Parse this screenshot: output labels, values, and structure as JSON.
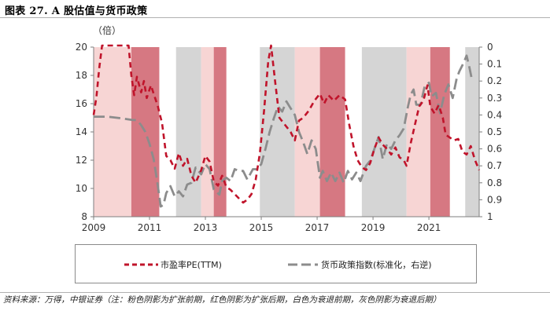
{
  "figure_title": "图表 27. A 股估值与货币政策",
  "source_note": "资料来源：万得，中银证券（注：粉色阴影为扩张前期，红色阴影为扩张后期，白色为衰退前期，灰色阴影为衰退后期）",
  "colors": {
    "pink_shade": "#f7d5d4",
    "red_shade": "#d67882",
    "gray_shade": "#d5d5d5",
    "pe_line": "#c0142b",
    "policy_line": "#8c8c8c",
    "axis": "#7f7f7f"
  },
  "chart_data": {
    "type": "line",
    "title": "",
    "left_axis": {
      "unit_label": "（倍）",
      "range": [
        8,
        20
      ],
      "ticks": [
        8,
        10,
        12,
        14,
        16,
        18,
        20
      ]
    },
    "right_axis": {
      "range": [
        0,
        1
      ],
      "inverted": true,
      "ticks": [
        "0",
        "0.1",
        "0.2",
        "0.3",
        "0.4",
        "0.5",
        "0.6",
        "0.7",
        "0.8",
        "0.9",
        "1"
      ]
    },
    "x_axis": {
      "range": [
        2009.0,
        2022.8
      ],
      "ticks": [
        "2009",
        "2011",
        "2013",
        "2015",
        "2017",
        "2019",
        "2021"
      ]
    },
    "legend": {
      "position": "bottom"
    },
    "shaded_periods": [
      {
        "phase": "扩张前期",
        "color": "pink",
        "start": 2009.0,
        "end": 2010.35
      },
      {
        "phase": "扩张后期",
        "color": "red",
        "start": 2010.35,
        "end": 2011.35
      },
      {
        "phase": "衰退后期",
        "color": "gray",
        "start": 2011.95,
        "end": 2012.85
      },
      {
        "phase": "扩张前期",
        "color": "pink",
        "start": 2012.85,
        "end": 2013.3
      },
      {
        "phase": "扩张后期",
        "color": "red",
        "start": 2013.3,
        "end": 2013.75
      },
      {
        "phase": "衰退后期",
        "color": "gray",
        "start": 2014.95,
        "end": 2016.2
      },
      {
        "phase": "扩张前期",
        "color": "pink",
        "start": 2016.2,
        "end": 2017.1
      },
      {
        "phase": "扩张后期",
        "color": "red",
        "start": 2017.1,
        "end": 2018.0
      },
      {
        "phase": "衰退后期",
        "color": "gray",
        "start": 2018.6,
        "end": 2020.2
      },
      {
        "phase": "扩张前期",
        "color": "pink",
        "start": 2020.2,
        "end": 2021.05
      },
      {
        "phase": "扩张后期",
        "color": "red",
        "start": 2021.05,
        "end": 2021.75
      },
      {
        "phase": "衰退后期",
        "color": "gray",
        "start": 2022.3,
        "end": 2022.8
      }
    ],
    "series": [
      {
        "name": "市盈率PE(TTM)",
        "axis": "left",
        "style": "dashed",
        "points": [
          [
            2009.0,
            15.2
          ],
          [
            2009.1,
            16.5
          ],
          [
            2009.2,
            18.5
          ],
          [
            2009.3,
            20.3
          ],
          [
            2009.4,
            20.5
          ],
          [
            2009.6,
            20.5
          ],
          [
            2009.8,
            20.5
          ],
          [
            2010.0,
            20.5
          ],
          [
            2010.25,
            20.4
          ],
          [
            2010.35,
            18.0
          ],
          [
            2010.45,
            16.6
          ],
          [
            2010.55,
            17.9
          ],
          [
            2010.7,
            16.8
          ],
          [
            2010.8,
            17.6
          ],
          [
            2010.9,
            16.4
          ],
          [
            2011.05,
            17.3
          ],
          [
            2011.15,
            16.7
          ],
          [
            2011.3,
            15.8
          ],
          [
            2011.45,
            14.6
          ],
          [
            2011.6,
            12.3
          ],
          [
            2011.75,
            12.0
          ],
          [
            2011.9,
            11.4
          ],
          [
            2012.05,
            12.5
          ],
          [
            2012.2,
            11.6
          ],
          [
            2012.35,
            12.1
          ],
          [
            2012.5,
            10.9
          ],
          [
            2012.65,
            10.4
          ],
          [
            2012.85,
            11.3
          ],
          [
            2013.0,
            12.3
          ],
          [
            2013.15,
            11.9
          ],
          [
            2013.3,
            10.5
          ],
          [
            2013.45,
            10.2
          ],
          [
            2013.6,
            10.9
          ],
          [
            2013.75,
            10.1
          ],
          [
            2013.9,
            9.9
          ],
          [
            2014.05,
            9.6
          ],
          [
            2014.2,
            9.3
          ],
          [
            2014.35,
            9.0
          ],
          [
            2014.5,
            9.2
          ],
          [
            2014.65,
            9.6
          ],
          [
            2014.8,
            10.6
          ],
          [
            2014.95,
            12.5
          ],
          [
            2015.1,
            15.5
          ],
          [
            2015.25,
            19.0
          ],
          [
            2015.35,
            20.5
          ],
          [
            2015.5,
            17.5
          ],
          [
            2015.65,
            15.0
          ],
          [
            2015.85,
            14.5
          ],
          [
            2016.05,
            14.0
          ],
          [
            2016.2,
            13.4
          ],
          [
            2016.35,
            14.8
          ],
          [
            2016.5,
            15.0
          ],
          [
            2016.7,
            15.5
          ],
          [
            2016.9,
            16.2
          ],
          [
            2017.1,
            16.7
          ],
          [
            2017.25,
            16.0
          ],
          [
            2017.4,
            16.6
          ],
          [
            2017.6,
            16.2
          ],
          [
            2017.8,
            16.6
          ],
          [
            2018.0,
            16.3
          ],
          [
            2018.15,
            14.5
          ],
          [
            2018.3,
            13.0
          ],
          [
            2018.45,
            12.0
          ],
          [
            2018.6,
            11.5
          ],
          [
            2018.75,
            11.3
          ],
          [
            2018.9,
            11.8
          ],
          [
            2019.05,
            12.8
          ],
          [
            2019.2,
            13.6
          ],
          [
            2019.35,
            13.1
          ],
          [
            2019.5,
            12.8
          ],
          [
            2019.65,
            12.4
          ],
          [
            2019.8,
            12.9
          ],
          [
            2019.95,
            12.2
          ],
          [
            2020.1,
            12.0
          ],
          [
            2020.2,
            11.6
          ],
          [
            2020.35,
            13.2
          ],
          [
            2020.5,
            14.5
          ],
          [
            2020.65,
            15.8
          ],
          [
            2020.8,
            16.2
          ],
          [
            2020.95,
            17.3
          ],
          [
            2021.05,
            15.8
          ],
          [
            2021.2,
            15.3
          ],
          [
            2021.35,
            15.9
          ],
          [
            2021.5,
            15.0
          ],
          [
            2021.6,
            13.8
          ],
          [
            2021.75,
            13.6
          ],
          [
            2021.9,
            13.4
          ],
          [
            2022.05,
            13.5
          ],
          [
            2022.2,
            12.6
          ],
          [
            2022.35,
            12.4
          ],
          [
            2022.5,
            13.0
          ],
          [
            2022.65,
            12.0
          ],
          [
            2022.8,
            11.3
          ]
        ]
      },
      {
        "name": "货币政策指数(标准化，右逆)",
        "axis": "right",
        "style": "dashed",
        "points": [
          [
            2009.0,
            0.41
          ],
          [
            2009.5,
            0.41
          ],
          [
            2010.0,
            0.42
          ],
          [
            2010.4,
            0.43
          ],
          [
            2010.55,
            0.43
          ],
          [
            2010.7,
            0.46
          ],
          [
            2010.85,
            0.5
          ],
          [
            2011.0,
            0.57
          ],
          [
            2011.15,
            0.66
          ],
          [
            2011.3,
            0.82
          ],
          [
            2011.4,
            0.94
          ],
          [
            2011.5,
            0.93
          ],
          [
            2011.6,
            0.86
          ],
          [
            2011.75,
            0.82
          ],
          [
            2011.9,
            0.88
          ],
          [
            2012.05,
            0.85
          ],
          [
            2012.2,
            0.88
          ],
          [
            2012.35,
            0.81
          ],
          [
            2012.5,
            0.8
          ],
          [
            2012.65,
            0.71
          ],
          [
            2012.85,
            0.75
          ],
          [
            2013.0,
            0.69
          ],
          [
            2013.15,
            0.72
          ],
          [
            2013.3,
            0.84
          ],
          [
            2013.5,
            0.87
          ],
          [
            2013.6,
            0.79
          ],
          [
            2013.75,
            0.77
          ],
          [
            2013.9,
            0.79
          ],
          [
            2014.05,
            0.72
          ],
          [
            2014.2,
            0.73
          ],
          [
            2014.35,
            0.73
          ],
          [
            2014.5,
            0.78
          ],
          [
            2014.7,
            0.72
          ],
          [
            2014.85,
            0.72
          ],
          [
            2015.0,
            0.69
          ],
          [
            2015.15,
            0.6
          ],
          [
            2015.3,
            0.5
          ],
          [
            2015.45,
            0.42
          ],
          [
            2015.6,
            0.35
          ],
          [
            2015.75,
            0.38
          ],
          [
            2015.9,
            0.32
          ],
          [
            2016.05,
            0.36
          ],
          [
            2016.2,
            0.4
          ],
          [
            2016.35,
            0.5
          ],
          [
            2016.5,
            0.56
          ],
          [
            2016.65,
            0.63
          ],
          [
            2016.8,
            0.55
          ],
          [
            2016.95,
            0.6
          ],
          [
            2017.1,
            0.77
          ],
          [
            2017.2,
            0.73
          ],
          [
            2017.35,
            0.79
          ],
          [
            2017.5,
            0.74
          ],
          [
            2017.65,
            0.79
          ],
          [
            2017.8,
            0.74
          ],
          [
            2017.95,
            0.8
          ],
          [
            2018.1,
            0.73
          ],
          [
            2018.25,
            0.78
          ],
          [
            2018.4,
            0.74
          ],
          [
            2018.55,
            0.79
          ],
          [
            2018.75,
            0.7
          ],
          [
            2018.9,
            0.67
          ],
          [
            2019.05,
            0.6
          ],
          [
            2019.2,
            0.53
          ],
          [
            2019.35,
            0.66
          ],
          [
            2019.5,
            0.57
          ],
          [
            2019.65,
            0.6
          ],
          [
            2019.8,
            0.55
          ],
          [
            2019.95,
            0.52
          ],
          [
            2020.1,
            0.48
          ],
          [
            2020.25,
            0.35
          ],
          [
            2020.35,
            0.28
          ],
          [
            2020.45,
            0.25
          ],
          [
            2020.55,
            0.34
          ],
          [
            2020.7,
            0.34
          ],
          [
            2020.85,
            0.23
          ],
          [
            2021.0,
            0.21
          ],
          [
            2021.1,
            0.29
          ],
          [
            2021.25,
            0.27
          ],
          [
            2021.4,
            0.39
          ],
          [
            2021.55,
            0.28
          ],
          [
            2021.7,
            0.22
          ],
          [
            2021.85,
            0.3
          ],
          [
            2022.0,
            0.18
          ],
          [
            2022.1,
            0.14
          ],
          [
            2022.25,
            0.09
          ],
          [
            2022.35,
            0.05
          ],
          [
            2022.45,
            0.12
          ],
          [
            2022.55,
            0.2
          ]
        ]
      }
    ]
  }
}
